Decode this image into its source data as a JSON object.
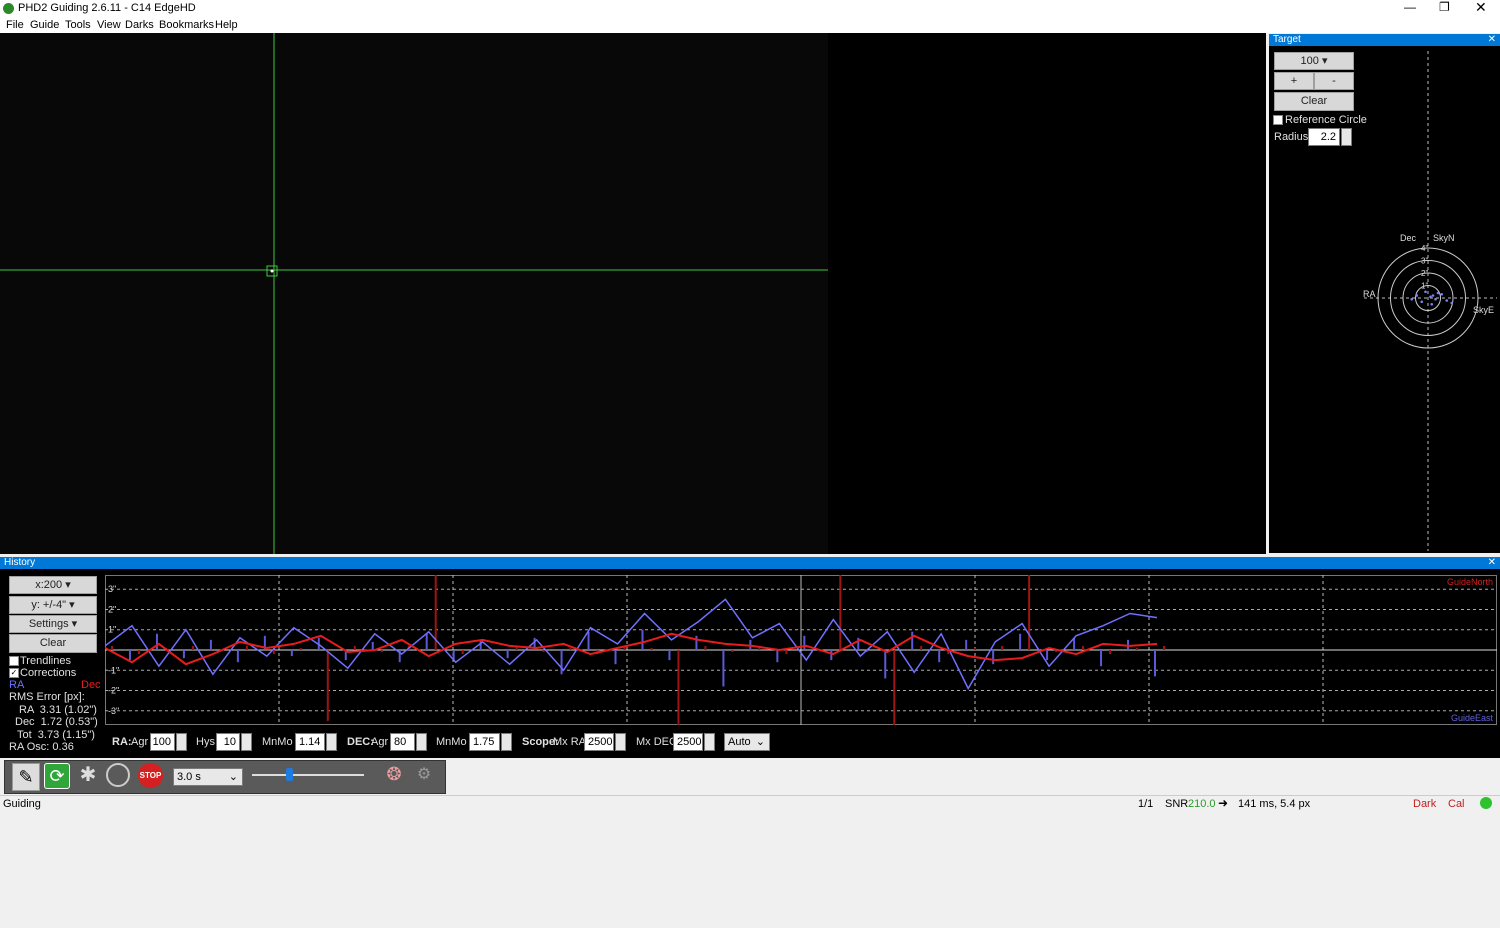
{
  "window": {
    "title": "PHD2 Guiding 2.6.11 - C14 EdgeHD"
  },
  "menu": [
    "File",
    "Guide",
    "Tools",
    "View",
    "Darks",
    "Bookmarks",
    "Help"
  ],
  "target": {
    "title": "Target",
    "scale": "100",
    "zoom_in": "+",
    "zoom_out": "-",
    "clear": "Clear",
    "reference_circle": "Reference Circle",
    "reference_circle_checked": false,
    "radius_label": "Radius:",
    "radius": "2.2",
    "labels": {
      "dec": "Dec",
      "north": "SkyN",
      "ra": "RA",
      "east": "SkyE"
    },
    "rings": [
      {
        "value": 1,
        "label": "1\""
      },
      {
        "value": 2,
        "label": "2\""
      },
      {
        "value": 3,
        "label": "3\""
      },
      {
        "value": 4,
        "label": "4\""
      }
    ],
    "points": {
      "x": [
        0.2,
        -0.5,
        0.8,
        1.5,
        -0.9,
        0.3,
        1.1,
        -0.2,
        0.6,
        1.9,
        -1.3,
        0.4
      ],
      "y": [
        0.1,
        -0.3,
        0.4,
        -0.2,
        0.2,
        -0.5,
        0.3,
        0.5,
        -0.1,
        -0.4,
        -0.1,
        0.2
      ],
      "color": "#8080ff"
    }
  },
  "history": {
    "title": "History",
    "x_scale": "x:200",
    "y_scale": "y: +/-4\"",
    "settings": "Settings",
    "clear": "Clear",
    "trendlines": "Trendlines",
    "trendlines_checked": false,
    "corrections": "Corrections",
    "corrections_checked": true,
    "rms_title": "RMS Error [px]:",
    "rms": [
      "RA  3.31 (1.02\")",
      "Dec  1.72 (0.53\")",
      "Tot  3.73 (1.15\")"
    ],
    "ra_osc": "RA Osc: 0.36",
    "north_label": "GuideNorth",
    "east_label": "GuideEast",
    "chart_data": {
      "type": "line",
      "ylim": [
        -3.7,
        3.7
      ],
      "yticks": [
        {
          "value": 3,
          "label": "3\""
        },
        {
          "value": 2,
          "label": "2\""
        },
        {
          "value": 1,
          "label": "1\""
        },
        {
          "value": -1,
          "label": "-1\""
        },
        {
          "value": -2,
          "label": "-2\""
        },
        {
          "value": -3,
          "label": "-3\""
        }
      ],
      "series": [
        {
          "name": "RA",
          "color": "#7070ff",
          "values": [
            0.2,
            1.2,
            -0.8,
            1.0,
            -1.2,
            0.6,
            -0.3,
            1.1,
            0.2,
            -0.9,
            0.8,
            -0.2,
            0.9,
            -0.6,
            0.4,
            -0.7,
            0.5,
            -1.0,
            1.1,
            0.3,
            1.8,
            0.5,
            1.4,
            2.5,
            0.6,
            1.3,
            -0.5,
            1.5,
            -0.3,
            0.9,
            -1.1,
            0.8,
            -1.9,
            0.4,
            1.3,
            -0.8,
            0.7,
            1.2,
            1.8,
            1.6
          ]
        },
        {
          "name": "Dec",
          "color": "#e81c1c",
          "values": [
            0.1,
            -0.6,
            0.3,
            -0.7,
            -0.2,
            0.4,
            0.1,
            0.3,
            0.7,
            -0.1,
            0.0,
            0.5,
            -0.3,
            0.3,
            0.5,
            0.2,
            0.1,
            0.3,
            -0.2,
            0.1,
            0.4,
            0.8,
            0.5,
            0.3,
            0.2,
            0.0,
            0.2,
            -0.2,
            0.5,
            -0.1,
            0.7,
            0.1,
            -0.3,
            -0.5,
            -0.4,
            0.1,
            -0.2,
            0.3,
            0.2,
            0.3
          ]
        }
      ],
      "corrections": [
        {
          "color": "#5a5ad8",
          "values": [
            0.6,
            -0.5,
            0.8,
            -0.4,
            0.5,
            -0.6,
            0.7,
            -0.3,
            0.6,
            -0.5,
            0.4,
            -0.6,
            0.8,
            -0.5,
            0.5,
            -0.4,
            0.6,
            -1.2,
            0.9,
            -0.7,
            1.0,
            -0.5,
            0.7,
            -1.8,
            0.5,
            -0.6,
            0.7,
            -0.5,
            0.6,
            -1.4,
            0.9,
            -0.6,
            0.5,
            -0.7,
            0.8,
            -0.5,
            0.6,
            -0.8,
            0.5,
            -1.3
          ]
        },
        {
          "color": "#a01414",
          "values": [
            0.2,
            -0.2,
            0.1,
            0.2,
            -0.1,
            0.2,
            -0.2,
            0.1,
            -3.5,
            0.2,
            -0.1,
            0.2,
            3.7,
            -0.2,
            0.1,
            0.2,
            -0.1,
            0.1,
            -0.2,
            0.2,
            0.1,
            -3.7,
            0.2,
            -0.1,
            0.2,
            -0.2,
            0.1,
            3.7,
            -0.1,
            -3.7,
            0.2,
            -0.2,
            0.1,
            0.2,
            3.7,
            -0.1,
            0.2,
            -0.2,
            0.1,
            0.2
          ]
        }
      ]
    },
    "params": {
      "ra": "RA:",
      "ra_agr_label": "Agr",
      "ra_agr": "100",
      "ra_hys_label": "Hys",
      "ra_hys": "10",
      "ra_mnmo_label": "MnMo",
      "ra_mnmo": "1.14",
      "dec": "DEC:",
      "dec_agr_label": "Agr",
      "dec_agr": "80",
      "dec_mnmo_label": "MnMo",
      "dec_mnmo": "1.75",
      "scope": "Scope:",
      "mx_ra_label": "Mx RA",
      "mx_ra": "2500",
      "mx_dec_label": "Mx DEC",
      "mx_dec": "2500",
      "mode": "Auto"
    }
  },
  "toolbar": {
    "exposure": "3.0 s",
    "stop": "STOP"
  },
  "status": {
    "state": "Guiding",
    "frame": "1/1",
    "snr_label": "SNR",
    "snr": "210.0",
    "pulse": "141 ms, 5.4 px",
    "dark": "Dark",
    "cal": "Cal"
  }
}
